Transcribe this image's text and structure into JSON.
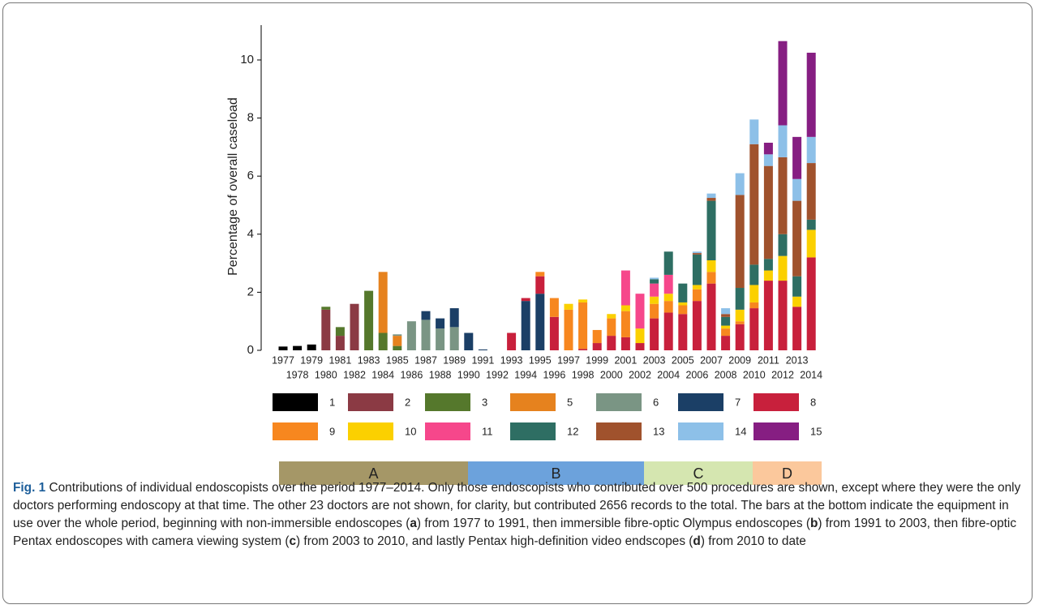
{
  "chart_data": {
    "type": "stacked-bar",
    "y_label": "Percentage of overall caseload",
    "categories": [
      "1977",
      "1978",
      "1979",
      "1980",
      "1981",
      "1982",
      "1983",
      "1984",
      "1985",
      "1986",
      "1987",
      "1988",
      "1989",
      "1990",
      "1991",
      "1992",
      "1993",
      "1994",
      "1995",
      "1996",
      "1997",
      "1998",
      "1999",
      "2000",
      "2001",
      "2002",
      "2003",
      "2004",
      "2005",
      "2006",
      "2007",
      "2008",
      "2009",
      "2010",
      "2011",
      "2012",
      "2013",
      "2014"
    ],
    "ylim": [
      0,
      11.2
    ],
    "yticks": [
      0,
      2,
      4,
      6,
      8,
      10
    ],
    "series": [
      {
        "name": "1",
        "color": "#000000",
        "values": [
          0.13,
          0.15,
          0.2,
          null,
          null,
          null,
          null,
          null,
          null,
          null,
          null,
          null,
          null,
          null,
          null,
          null,
          null,
          null,
          null,
          null,
          null,
          null,
          null,
          null,
          null,
          null,
          null,
          null,
          null,
          null,
          null,
          null,
          null,
          null,
          null,
          null,
          null,
          null
        ]
      },
      {
        "name": "2",
        "color": "#8b3a44",
        "values": [
          null,
          null,
          null,
          1.4,
          0.5,
          1.6,
          null,
          null,
          null,
          null,
          null,
          null,
          null,
          null,
          null,
          null,
          null,
          null,
          null,
          null,
          null,
          null,
          null,
          null,
          null,
          null,
          null,
          null,
          null,
          null,
          null,
          null,
          null,
          null,
          null,
          null,
          null,
          null
        ]
      },
      {
        "name": "3",
        "color": "#55782c",
        "values": [
          null,
          null,
          null,
          0.1,
          0.3,
          null,
          2.05,
          0.6,
          0.15,
          null,
          null,
          null,
          null,
          null,
          null,
          null,
          null,
          null,
          null,
          null,
          null,
          null,
          null,
          null,
          null,
          null,
          null,
          null,
          null,
          null,
          null,
          null,
          null,
          null,
          null,
          null,
          null,
          null
        ]
      },
      {
        "name": "5",
        "color": "#e6821e",
        "values": [
          null,
          null,
          null,
          null,
          null,
          null,
          null,
          2.1,
          0.35,
          null,
          null,
          null,
          null,
          null,
          null,
          null,
          null,
          null,
          null,
          null,
          null,
          null,
          null,
          null,
          null,
          null,
          null,
          null,
          null,
          null,
          null,
          null,
          null,
          null,
          null,
          null,
          null,
          null
        ]
      },
      {
        "name": "6",
        "color": "#7a9584",
        "values": [
          null,
          null,
          null,
          null,
          null,
          null,
          null,
          null,
          0.05,
          1.0,
          1.05,
          0.75,
          0.8,
          null,
          null,
          null,
          null,
          null,
          null,
          null,
          null,
          null,
          null,
          null,
          null,
          null,
          null,
          null,
          null,
          null,
          null,
          null,
          null,
          null,
          null,
          null,
          null,
          null
        ]
      },
      {
        "name": "7",
        "color": "#1b3f66",
        "values": [
          null,
          null,
          null,
          null,
          null,
          null,
          null,
          null,
          null,
          null,
          0.3,
          0.35,
          0.65,
          0.6,
          0.03,
          null,
          null,
          1.7,
          1.95,
          null,
          null,
          null,
          null,
          null,
          null,
          null,
          null,
          null,
          null,
          null,
          null,
          null,
          null,
          null,
          null,
          null,
          null,
          null
        ]
      },
      {
        "name": "8",
        "color": "#c8203c",
        "values": [
          null,
          null,
          null,
          null,
          null,
          null,
          null,
          null,
          null,
          null,
          null,
          null,
          null,
          null,
          null,
          null,
          0.6,
          0.1,
          0.6,
          1.15,
          null,
          0.05,
          0.25,
          0.5,
          0.45,
          0.25,
          1.1,
          1.3,
          1.25,
          1.7,
          2.3,
          0.5,
          0.9,
          1.45,
          2.4,
          2.4,
          1.5,
          3.2
        ]
      },
      {
        "name": "9",
        "color": "#f7871f",
        "values": [
          null,
          null,
          null,
          null,
          null,
          null,
          null,
          null,
          null,
          null,
          null,
          null,
          null,
          null,
          null,
          null,
          null,
          null,
          0.15,
          0.65,
          1.4,
          1.6,
          0.45,
          0.6,
          0.9,
          null,
          0.5,
          0.4,
          0.3,
          0.4,
          0.4,
          0.25,
          0.1,
          0.2,
          null,
          null,
          null,
          null
        ]
      },
      {
        "name": "10",
        "color": "#fbd000",
        "values": [
          null,
          null,
          null,
          null,
          null,
          null,
          null,
          null,
          null,
          null,
          null,
          null,
          null,
          null,
          null,
          null,
          null,
          null,
          null,
          null,
          0.2,
          0.1,
          null,
          0.15,
          0.2,
          0.5,
          0.25,
          0.25,
          0.1,
          0.15,
          0.4,
          0.1,
          0.4,
          0.6,
          0.35,
          0.85,
          0.35,
          0.95
        ]
      },
      {
        "name": "11",
        "color": "#f6478b",
        "values": [
          null,
          null,
          null,
          null,
          null,
          null,
          null,
          null,
          null,
          null,
          null,
          null,
          null,
          null,
          null,
          null,
          null,
          null,
          null,
          null,
          null,
          null,
          null,
          null,
          1.2,
          1.2,
          0.45,
          0.65,
          null,
          null,
          null,
          null,
          null,
          null,
          null,
          null,
          null,
          null
        ]
      },
      {
        "name": "12",
        "color": "#2e6e63",
        "values": [
          null,
          null,
          null,
          null,
          null,
          null,
          null,
          null,
          null,
          null,
          null,
          null,
          null,
          null,
          null,
          null,
          null,
          null,
          null,
          null,
          null,
          null,
          null,
          null,
          null,
          null,
          0.15,
          0.8,
          0.65,
          1.05,
          2.05,
          0.3,
          0.75,
          0.7,
          0.4,
          0.75,
          0.7,
          0.35
        ]
      },
      {
        "name": "13",
        "color": "#a0522d",
        "values": [
          null,
          null,
          null,
          null,
          null,
          null,
          null,
          null,
          null,
          null,
          null,
          null,
          null,
          null,
          null,
          null,
          null,
          null,
          null,
          null,
          null,
          null,
          null,
          null,
          null,
          null,
          null,
          null,
          null,
          0.05,
          0.1,
          0.1,
          3.2,
          4.15,
          3.2,
          2.65,
          2.6,
          1.95
        ]
      },
      {
        "name": "14",
        "color": "#8dc0e8",
        "values": [
          null,
          null,
          null,
          null,
          null,
          null,
          null,
          null,
          null,
          null,
          null,
          null,
          null,
          null,
          null,
          null,
          null,
          null,
          null,
          null,
          null,
          null,
          null,
          null,
          null,
          null,
          0.05,
          null,
          null,
          0.05,
          0.15,
          0.2,
          0.75,
          0.85,
          0.4,
          1.1,
          0.75,
          0.9
        ]
      },
      {
        "name": "15",
        "color": "#861e82",
        "values": [
          null,
          null,
          null,
          null,
          null,
          null,
          null,
          null,
          null,
          null,
          null,
          null,
          null,
          null,
          null,
          null,
          null,
          null,
          null,
          null,
          null,
          null,
          null,
          null,
          null,
          null,
          null,
          null,
          null,
          null,
          null,
          null,
          null,
          null,
          0.4,
          2.9,
          1.45,
          2.9
        ]
      }
    ]
  },
  "equipment": [
    {
      "label": "A",
      "color": "#a59767"
    },
    {
      "label": "B",
      "color": "#6ca2dc"
    },
    {
      "label": "C",
      "color": "#d5e6b0"
    },
    {
      "label": "D",
      "color": "#fbc89c"
    }
  ],
  "caption": [
    {
      "text": "Fig. 1",
      "bold": true
    },
    {
      "text": " Contributions of individual endoscopists over the period 1977–2014. Only those endoscopists who contributed over 500 procedures are shown, except where they were the only doctors performing endoscopy at that time. The other 23 doctors are not shown, for clarity, but contributed 2656 records to the total. The bars at the bottom indicate the equipment in use over the whole period, beginning with non-immersible endoscopes (",
      "bold": false
    },
    {
      "text": "a",
      "bold": true
    },
    {
      "text": ") from 1977 to 1991, then immersible fibre-optic Olympus endoscopes (",
      "bold": false
    },
    {
      "text": "b",
      "bold": true
    },
    {
      "text": ") from 1991 to 2003, then fibre-optic Pentax endoscopes with camera viewing system (",
      "bold": false
    },
    {
      "text": "c",
      "bold": true
    },
    {
      "text": ") from 2003 to 2010, and lastly Pentax high-definition video endscopes (",
      "bold": false
    },
    {
      "text": "d",
      "bold": true
    },
    {
      "text": ") from 2010 to date",
      "bold": false
    }
  ]
}
